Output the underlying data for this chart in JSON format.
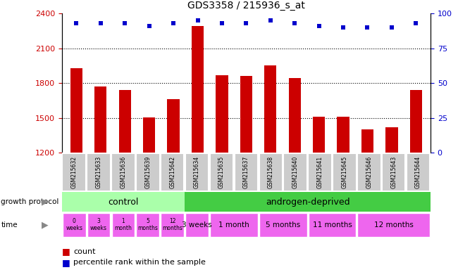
{
  "title": "GDS3358 / 215936_s_at",
  "samples": [
    "GSM215632",
    "GSM215633",
    "GSM215636",
    "GSM215639",
    "GSM215642",
    "GSM215634",
    "GSM215635",
    "GSM215637",
    "GSM215638",
    "GSM215640",
    "GSM215641",
    "GSM215645",
    "GSM215646",
    "GSM215643",
    "GSM215644"
  ],
  "counts": [
    1930,
    1770,
    1740,
    1503,
    1660,
    2290,
    1870,
    1860,
    1950,
    1840,
    1510,
    1510,
    1400,
    1420,
    1740
  ],
  "percentile_ranks": [
    93,
    93,
    93,
    91,
    93,
    95,
    93,
    93,
    95,
    93,
    91,
    90,
    90,
    90,
    93
  ],
  "ylim_left": [
    1200,
    2400
  ],
  "ylim_right": [
    0,
    100
  ],
  "yticks_left": [
    1200,
    1500,
    1800,
    2100,
    2400
  ],
  "yticks_right": [
    0,
    25,
    50,
    75,
    100
  ],
  "bar_color": "#cc0000",
  "dot_color": "#0000cc",
  "grid_color": "#000000",
  "bg_color": "#ffffff",
  "plot_bg": "#ffffff",
  "sample_bg_color": "#cccccc",
  "sample_border_color": "#ffffff",
  "protocol_control_color": "#aaffaa",
  "protocol_androgen_color": "#44cc44",
  "time_color": "#ee66ee",
  "time_border_color": "#ffffff",
  "control_label": "control",
  "androgen_label": "androgen-deprived",
  "protocol_label": "growth protocol",
  "time_label": "time",
  "control_time_labels": [
    "0\nweeks",
    "3\nweeks",
    "1\nmonth",
    "5\nmonths",
    "12\nmonths"
  ],
  "androgen_time_labels": [
    "3 weeks",
    "1 month",
    "5 months",
    "11 months",
    "12 months"
  ],
  "androgen_groups": [
    1,
    2,
    2,
    2,
    3
  ],
  "control_cols": 5,
  "androgen_cols": 10,
  "legend_count_color": "#cc0000",
  "legend_rank_color": "#0000cc",
  "label_count": "count",
  "label_rank": "percentile rank within the sample",
  "tick_label_color_left": "#cc0000",
  "tick_label_color_right": "#0000cc",
  "arrow_color": "#888888"
}
